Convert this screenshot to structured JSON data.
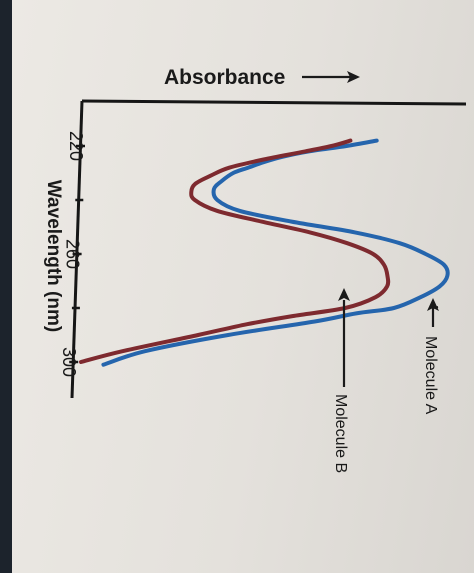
{
  "chart_data": {
    "type": "line",
    "orientation": "rotated-90",
    "title": "",
    "xlabel": "Wavelength (nm)",
    "ylabel": "Absorbance",
    "x_ticks": [
      220,
      260,
      300
    ],
    "xlim": [
      215,
      305
    ],
    "ylim": [
      0,
      1
    ],
    "grid": false,
    "series": [
      {
        "name": "Molecule A",
        "color": "#2565ad",
        "x": [
          301,
          296,
          290,
          285,
          282,
          280,
          276,
          272,
          268,
          264,
          260,
          256,
          252,
          248,
          244,
          240,
          236,
          233,
          230,
          228,
          226,
          224,
          222,
          220,
          218
        ],
        "y": [
          0.07,
          0.18,
          0.4,
          0.63,
          0.74,
          0.84,
          0.91,
          0.96,
          0.98,
          0.97,
          0.92,
          0.85,
          0.73,
          0.56,
          0.42,
          0.36,
          0.35,
          0.37,
          0.4,
          0.44,
          0.48,
          0.53,
          0.6,
          0.7,
          0.78
        ]
      },
      {
        "name": "Molecule B",
        "color": "#7e2a2f",
        "x": [
          300,
          296,
          290,
          286,
          283,
          280,
          276,
          272,
          268,
          264,
          260,
          256,
          252,
          248,
          244,
          240,
          237,
          234,
          231,
          228,
          225,
          222,
          220,
          218
        ],
        "y": [
          0.01,
          0.12,
          0.32,
          0.45,
          0.57,
          0.71,
          0.79,
          0.82,
          0.82,
          0.81,
          0.78,
          0.71,
          0.61,
          0.48,
          0.36,
          0.3,
          0.29,
          0.3,
          0.34,
          0.39,
          0.48,
          0.59,
          0.66,
          0.71
        ]
      }
    ],
    "annotations": [
      {
        "text": "Molecule A",
        "points_to": "Molecule A",
        "x": 280
      },
      {
        "text": "Molecule B",
        "points_to": "Molecule B",
        "x": 280
      }
    ]
  }
}
